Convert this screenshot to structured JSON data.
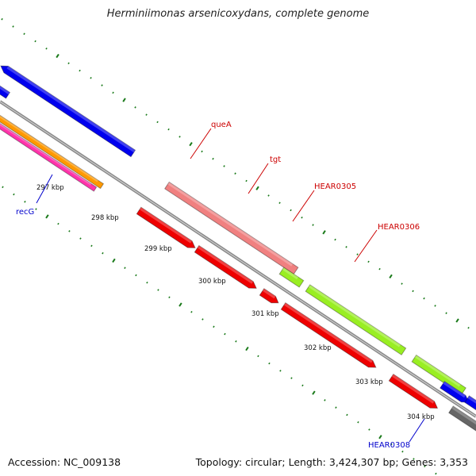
{
  "title": "Herminiimonas arsenicoxydans, complete genome",
  "footer": {
    "accession": "Accession: NC_009138",
    "summary": "Topology: circular; Length: 3,424,307 bp; Genes: 3,353"
  },
  "ruler": {
    "labels": [
      "297 kbp",
      "298 kbp",
      "299 kbp",
      "300 kbp",
      "301 kbp",
      "302 kbp",
      "303 kbp",
      "304 kbp"
    ]
  },
  "gene_labels": [
    {
      "text": "queA",
      "color": "#cc0000"
    },
    {
      "text": "tgt",
      "color": "#cc0000"
    },
    {
      "text": "HEAR0305",
      "color": "#cc0000"
    },
    {
      "text": "HEAR0306",
      "color": "#cc0000"
    },
    {
      "text": "recG",
      "color": "#0000cc"
    },
    {
      "text": "HEAR0308",
      "color": "#0000cc"
    }
  ],
  "colors": {
    "backbone": "#8a8a8a",
    "tick": "#1a7a1a",
    "blue": "#0000ee",
    "red": "#ee0000",
    "pink": "#f08080",
    "lime": "#99ee22",
    "orange": "#ff9900",
    "magenta": "#ff33aa",
    "gray": "#666666"
  }
}
